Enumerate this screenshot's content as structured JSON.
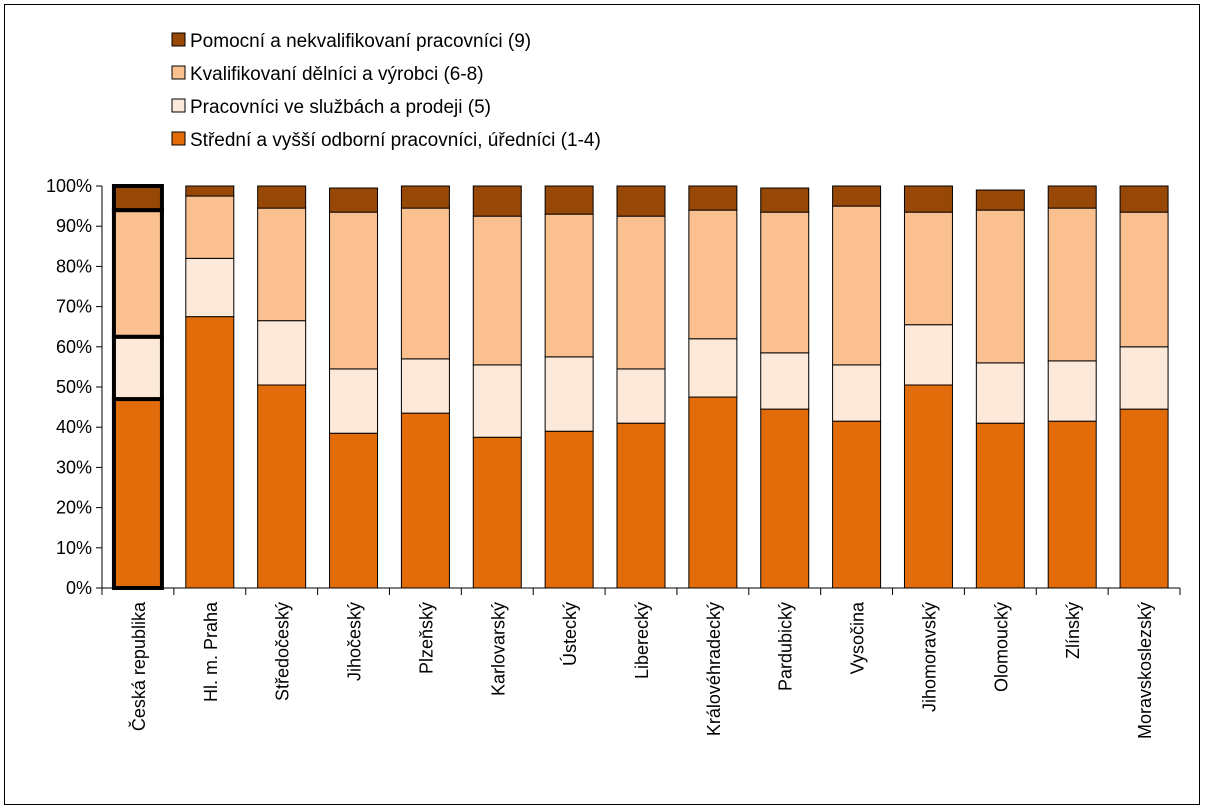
{
  "chart_data": {
    "type": "bar",
    "stacked": true,
    "ylim": [
      0,
      100
    ],
    "y_ticks": [
      "0%",
      "10%",
      "20%",
      "30%",
      "40%",
      "50%",
      "60%",
      "70%",
      "80%",
      "90%",
      "100%"
    ],
    "categories": [
      "Česká republika",
      "Hl. m. Praha",
      "Středočeský",
      "Jihočeský",
      "Plzeňský",
      "Karlovarský",
      "Ústecký",
      "Liberecký",
      "Královéhradecký",
      "Pardubický",
      "Vysočina",
      "Jihomoravský",
      "Olomoucký",
      "Zlínský",
      "Moravskoslezský"
    ],
    "highlighted_category": "Česká republika",
    "legend_position": "top-left",
    "grid": false,
    "series": [
      {
        "name": "Střední a vyšší odborní pracovníci, úředníci (1-4)",
        "color": "#e36c0a",
        "values": [
          47,
          67.5,
          50.5,
          38.5,
          43.5,
          37.5,
          39,
          41,
          47.5,
          44.5,
          41.5,
          50.5,
          41,
          41.5,
          44.5
        ]
      },
      {
        "name": "Pracovníci ve službách a prodeji (5)",
        "color": "#fde9d9",
        "values": [
          15.5,
          14.5,
          16,
          16,
          13.5,
          18,
          18.5,
          13.5,
          14.5,
          14,
          14,
          15,
          15,
          15,
          15.5
        ]
      },
      {
        "name": "Kvalifikovaní dělníci a výrobci (6-8)",
        "color": "#fac090",
        "values": [
          31.5,
          15.5,
          28,
          39,
          37.5,
          37,
          35.5,
          38,
          32,
          35,
          39.5,
          28,
          38,
          38,
          33.5
        ]
      },
      {
        "name": "Pomocní a nekvalifikovaní pracovníci (9)",
        "color": "#974806",
        "values": [
          6,
          2.5,
          5.5,
          6,
          5.5,
          7.5,
          7,
          7.5,
          6,
          6,
          5,
          6.5,
          5,
          5.5,
          6.5
        ]
      }
    ]
  }
}
